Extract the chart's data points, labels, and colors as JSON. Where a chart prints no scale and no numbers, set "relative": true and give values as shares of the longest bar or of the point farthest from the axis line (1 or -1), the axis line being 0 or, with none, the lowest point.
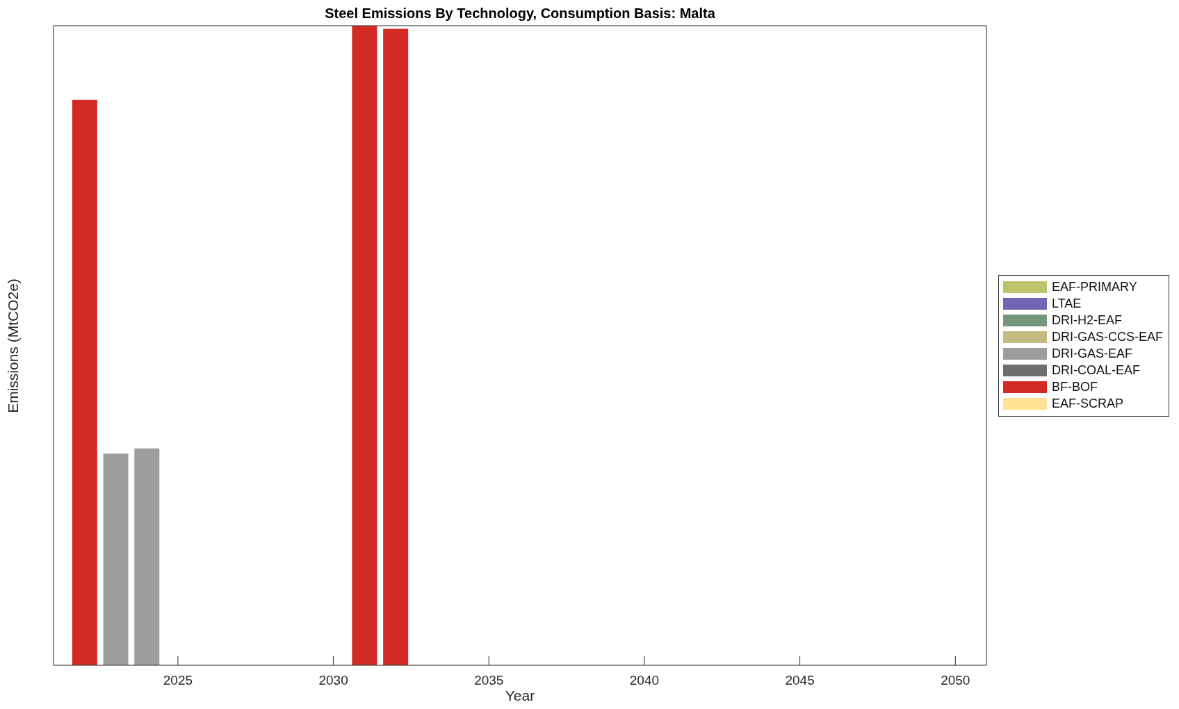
{
  "chart_data": {
    "type": "bar",
    "title": "Steel Emissions By Technology, Consumption Basis: Malta",
    "xlabel": "Year",
    "ylabel": "Emissions (MtCO2e)",
    "x": [
      2022,
      2023,
      2024,
      2025,
      2026,
      2027,
      2028,
      2029,
      2030,
      2031,
      2032,
      2033,
      2034,
      2035,
      2036,
      2037,
      2038,
      2039,
      2040,
      2041,
      2042,
      2043,
      2044,
      2045,
      2046,
      2047,
      2048,
      2049,
      2050
    ],
    "xlim": [
      2021,
      2051
    ],
    "xticks": [
      2025,
      2030,
      2035,
      2040,
      2045,
      2050
    ],
    "relative": true,
    "stacked": true,
    "legend": "right",
    "series": [
      {
        "name": "EAF-SCRAP",
        "color": "#fde393",
        "values": [
          0,
          0,
          0,
          0,
          0,
          0,
          0,
          0,
          0,
          0,
          0,
          0,
          0,
          0,
          0,
          0,
          0,
          0,
          0,
          0,
          0,
          0,
          0,
          0,
          0,
          0,
          0,
          0,
          0
        ]
      },
      {
        "name": "BF-BOF",
        "color": "#d22b25",
        "values": [
          0.884,
          0,
          0,
          0,
          0,
          0,
          0,
          0,
          0,
          1,
          0.995,
          0,
          0,
          0,
          0,
          0,
          0,
          0,
          0,
          0,
          0,
          0,
          0,
          0,
          0,
          0,
          0,
          0,
          0
        ]
      },
      {
        "name": "DRI-COAL-EAF",
        "color": "#6e6e6e",
        "values": [
          0,
          0,
          0,
          0,
          0,
          0,
          0,
          0,
          0,
          0,
          0,
          0,
          0,
          0,
          0,
          0,
          0,
          0,
          0,
          0,
          0,
          0,
          0,
          0,
          0,
          0,
          0,
          0,
          0
        ]
      },
      {
        "name": "DRI-GAS-EAF",
        "color": "#9d9d9b",
        "values": [
          0,
          0.331,
          0.339,
          0,
          0,
          0,
          0,
          0,
          0,
          0,
          0,
          0,
          0,
          0,
          0,
          0,
          0,
          0,
          0,
          0,
          0,
          0,
          0,
          0,
          0,
          0,
          0,
          0,
          0
        ]
      },
      {
        "name": "DRI-GAS-CCS-EAF",
        "color": "#c3ba7f",
        "values": [
          0,
          0,
          0,
          0,
          0,
          0,
          0,
          0,
          0,
          0,
          0,
          0,
          0,
          0,
          0,
          0,
          0,
          0,
          0,
          0,
          0,
          0,
          0,
          0,
          0,
          0,
          0,
          0,
          0
        ]
      },
      {
        "name": "DRI-H2-EAF",
        "color": "#74967b",
        "values": [
          0,
          0,
          0,
          0,
          0,
          0,
          0,
          0,
          0,
          0,
          0,
          0,
          0,
          0,
          0,
          0,
          0,
          0,
          0,
          0,
          0,
          0,
          0,
          0,
          0,
          0,
          0,
          0,
          0
        ]
      },
      {
        "name": "LTAE",
        "color": "#7166b4",
        "values": [
          0,
          0,
          0,
          0,
          0,
          0,
          0,
          0,
          0,
          0,
          0,
          0,
          0,
          0,
          0,
          0,
          0,
          0,
          0,
          0,
          0,
          0,
          0,
          0,
          0,
          0,
          0,
          0,
          0
        ]
      },
      {
        "name": "EAF-PRIMARY",
        "color": "#bec46c",
        "values": [
          0,
          0,
          0,
          0,
          0,
          0,
          0,
          0,
          0,
          0,
          0,
          0,
          0,
          0,
          0,
          0,
          0,
          0,
          0,
          0,
          0,
          0,
          0,
          0,
          0,
          0,
          0,
          0,
          0
        ]
      }
    ]
  }
}
